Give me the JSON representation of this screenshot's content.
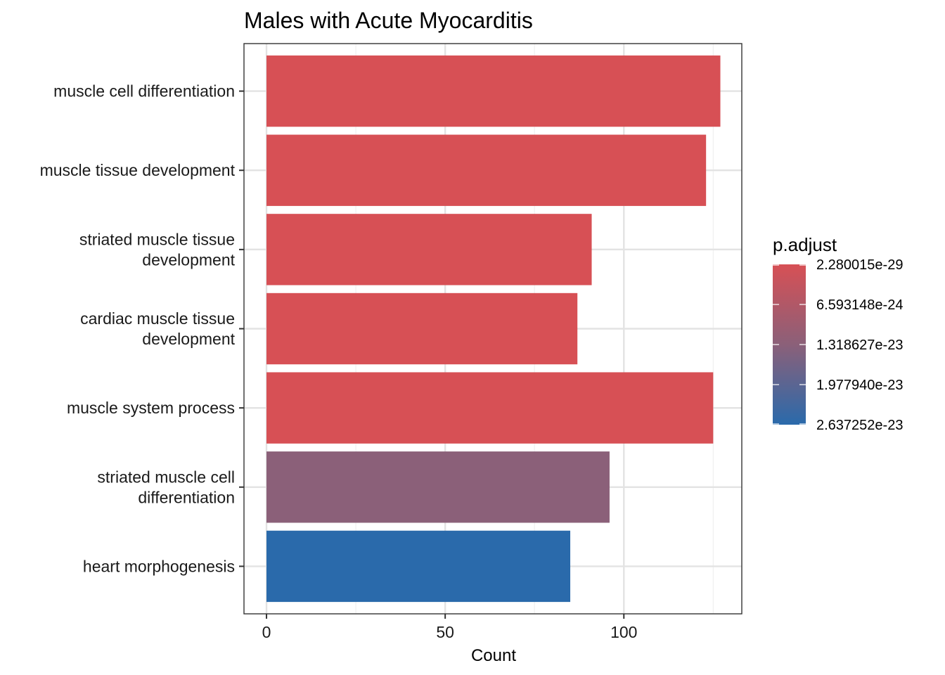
{
  "chart_data": {
    "type": "bar",
    "orientation": "horizontal",
    "title": "Males with Acute Myocarditis",
    "xlabel": "Count",
    "ylabel": "",
    "xlim": [
      -6.3,
      133
    ],
    "xticks": [
      0,
      50,
      100
    ],
    "grid": true,
    "categories": [
      [
        "muscle cell differentiation"
      ],
      [
        "muscle tissue development"
      ],
      [
        "striated muscle tissue",
        "development"
      ],
      [
        "cardiac muscle tissue",
        "development"
      ],
      [
        "muscle system process"
      ],
      [
        "striated muscle cell",
        "differentiation"
      ],
      [
        "heart morphogenesis"
      ]
    ],
    "values": [
      127,
      123,
      91,
      87,
      125,
      96,
      85
    ],
    "p_adjust": [
      2.280015e-29,
      2.280015e-29,
      2.280015e-29,
      2.280015e-29,
      2.280015e-29,
      1.318627e-23,
      2.637252e-23
    ],
    "legend": {
      "title": "p.adjust",
      "position": "right",
      "labels": [
        "2.280015e-29",
        "6.593148e-24",
        "1.318627e-23",
        "1.977940e-23",
        "2.637252e-23"
      ],
      "colors": [
        "#d75055",
        "#8b6079",
        "#2a6aab"
      ]
    }
  }
}
